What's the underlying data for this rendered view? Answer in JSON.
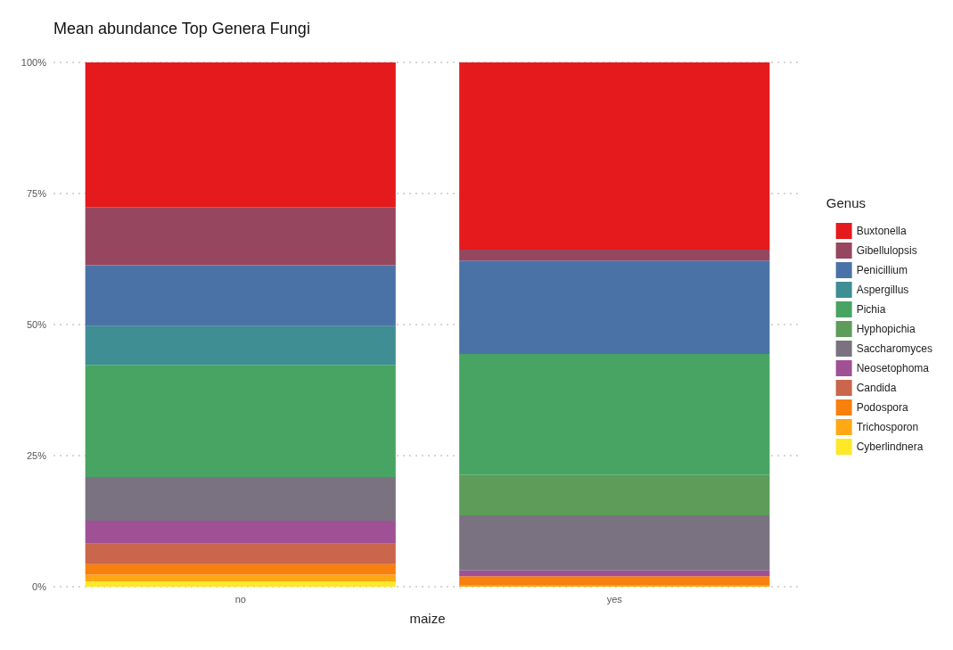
{
  "chart_data": {
    "type": "bar",
    "title": "Mean abundance Top Genera Fungi",
    "xlabel": "maize",
    "legend_title": "Genus",
    "categories": [
      "no",
      "yes"
    ],
    "stacked": true,
    "legend": "right",
    "grid": "y",
    "ylim": [
      0,
      100
    ],
    "yticks": [
      {
        "value": 0,
        "label": "0%"
      },
      {
        "value": 25,
        "label": "25%"
      },
      {
        "value": 50,
        "label": "50%"
      },
      {
        "value": 75,
        "label": "75%"
      },
      {
        "value": 100,
        "label": "100%"
      }
    ],
    "series": [
      {
        "name": "Cyberlindnera",
        "color": "#fee828",
        "values": [
          1.0,
          0
        ]
      },
      {
        "name": "Trichosporon",
        "color": "#ffa714",
        "values": [
          1.3,
          0.2
        ]
      },
      {
        "name": "Podospora",
        "color": "#f8800e",
        "values": [
          2.0,
          1.8
        ]
      },
      {
        "name": "Candida",
        "color": "#c9664b",
        "values": [
          3.9,
          0
        ]
      },
      {
        "name": "Neosetophoma",
        "color": "#a05196",
        "values": [
          4.4,
          1.1
        ]
      },
      {
        "name": "Saccharomyces",
        "color": "#7a7281",
        "values": [
          8.3,
          10.5
        ]
      },
      {
        "name": "Hyphopichia",
        "color": "#5d9c59",
        "values": [
          0,
          7.7
        ]
      },
      {
        "name": "Pichia",
        "color": "#48a462",
        "values": [
          21.4,
          23.1
        ]
      },
      {
        "name": "Aspergillus",
        "color": "#3e8e93",
        "values": [
          7.4,
          0
        ]
      },
      {
        "name": "Penicillium",
        "color": "#4a72a6",
        "values": [
          11.6,
          17.8
        ]
      },
      {
        "name": "Gibellulopsis",
        "color": "#974660",
        "values": [
          11.1,
          2.1
        ]
      },
      {
        "name": "Buxtonella",
        "color": "#e41a1c",
        "values": [
          27.6,
          35.7
        ]
      }
    ]
  }
}
